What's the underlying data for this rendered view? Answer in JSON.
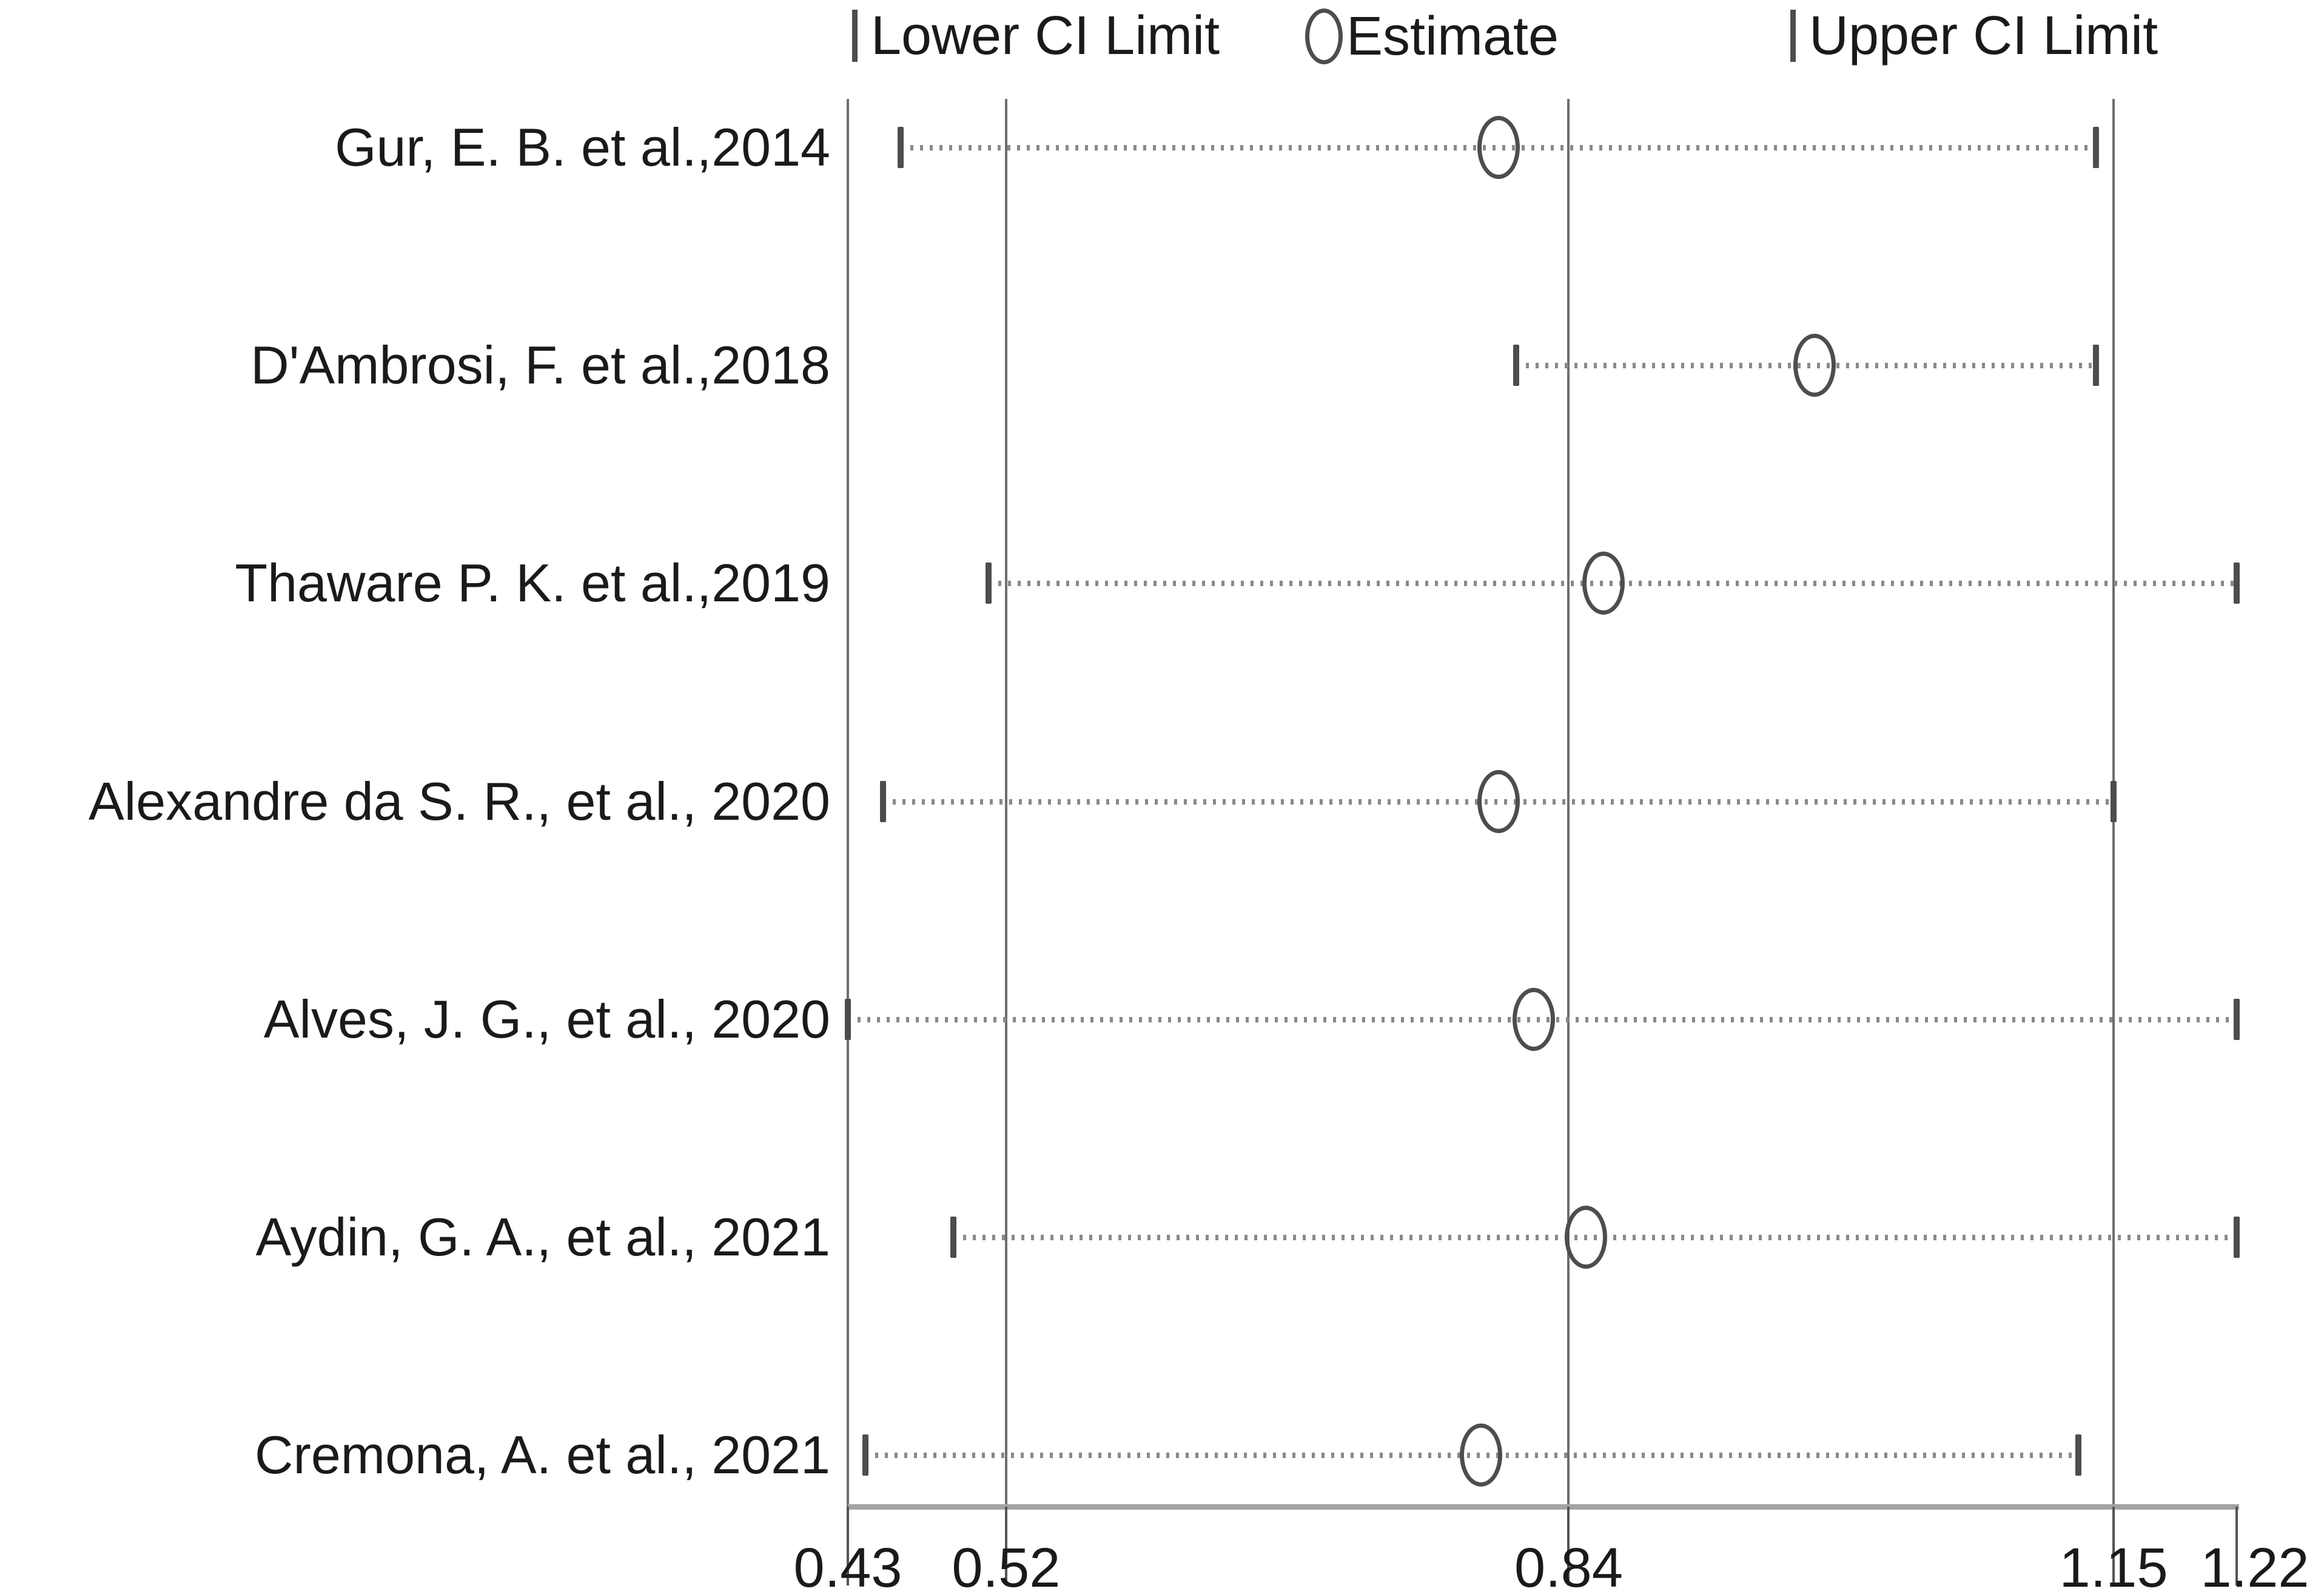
{
  "chart_data": {
    "type": "scatter",
    "subtype": "forest-plot",
    "title": "",
    "legend": [
      {
        "marker": "tick",
        "label": "Lower CI Limit"
      },
      {
        "marker": "circle",
        "label": "Estimate"
      },
      {
        "marker": "tick",
        "label": "Upper CI Limit"
      }
    ],
    "legend_position": "top",
    "x_axis": {
      "min": 0.43,
      "max": 1.22,
      "tick_values": [
        0.43,
        0.52,
        0.84,
        1.15,
        1.22
      ],
      "tick_labels": [
        "0.43",
        "0.52",
        "0.84",
        "1.15",
        "1.22"
      ],
      "gridline_values": [
        0.43,
        0.52,
        0.84,
        1.15
      ],
      "grid": true
    },
    "rows": [
      {
        "study": "Gur, E. B. et al.,2014",
        "lower": 0.46,
        "estimate": 0.8,
        "upper": 1.14
      },
      {
        "study": "D'Ambrosi, F. et al.,2018",
        "lower": 0.81,
        "estimate": 0.98,
        "upper": 1.14
      },
      {
        "study": "Thaware P. K. et al.,2019",
        "lower": 0.51,
        "estimate": 0.86,
        "upper": 1.22
      },
      {
        "study": "Alexandre da S. R., et al., 2020",
        "lower": 0.45,
        "estimate": 0.8,
        "upper": 1.15
      },
      {
        "study": "Alves, J. G., et al., 2020",
        "lower": 0.43,
        "estimate": 0.82,
        "upper": 1.22
      },
      {
        "study": "Aydin, G. A., et al., 2021",
        "lower": 0.49,
        "estimate": 0.85,
        "upper": 1.22
      },
      {
        "study": "Cremona, A. et al., 2021",
        "lower": 0.44,
        "estimate": 0.79,
        "upper": 1.13
      }
    ]
  },
  "colors": {
    "background": "#ffffff",
    "text": "#1a1a1a",
    "gridline": "#6e6e6e",
    "axis_baseline": "#a3a3a3",
    "ci_dotted_line": "#898989",
    "marker_stroke": "#4d4d4d"
  }
}
